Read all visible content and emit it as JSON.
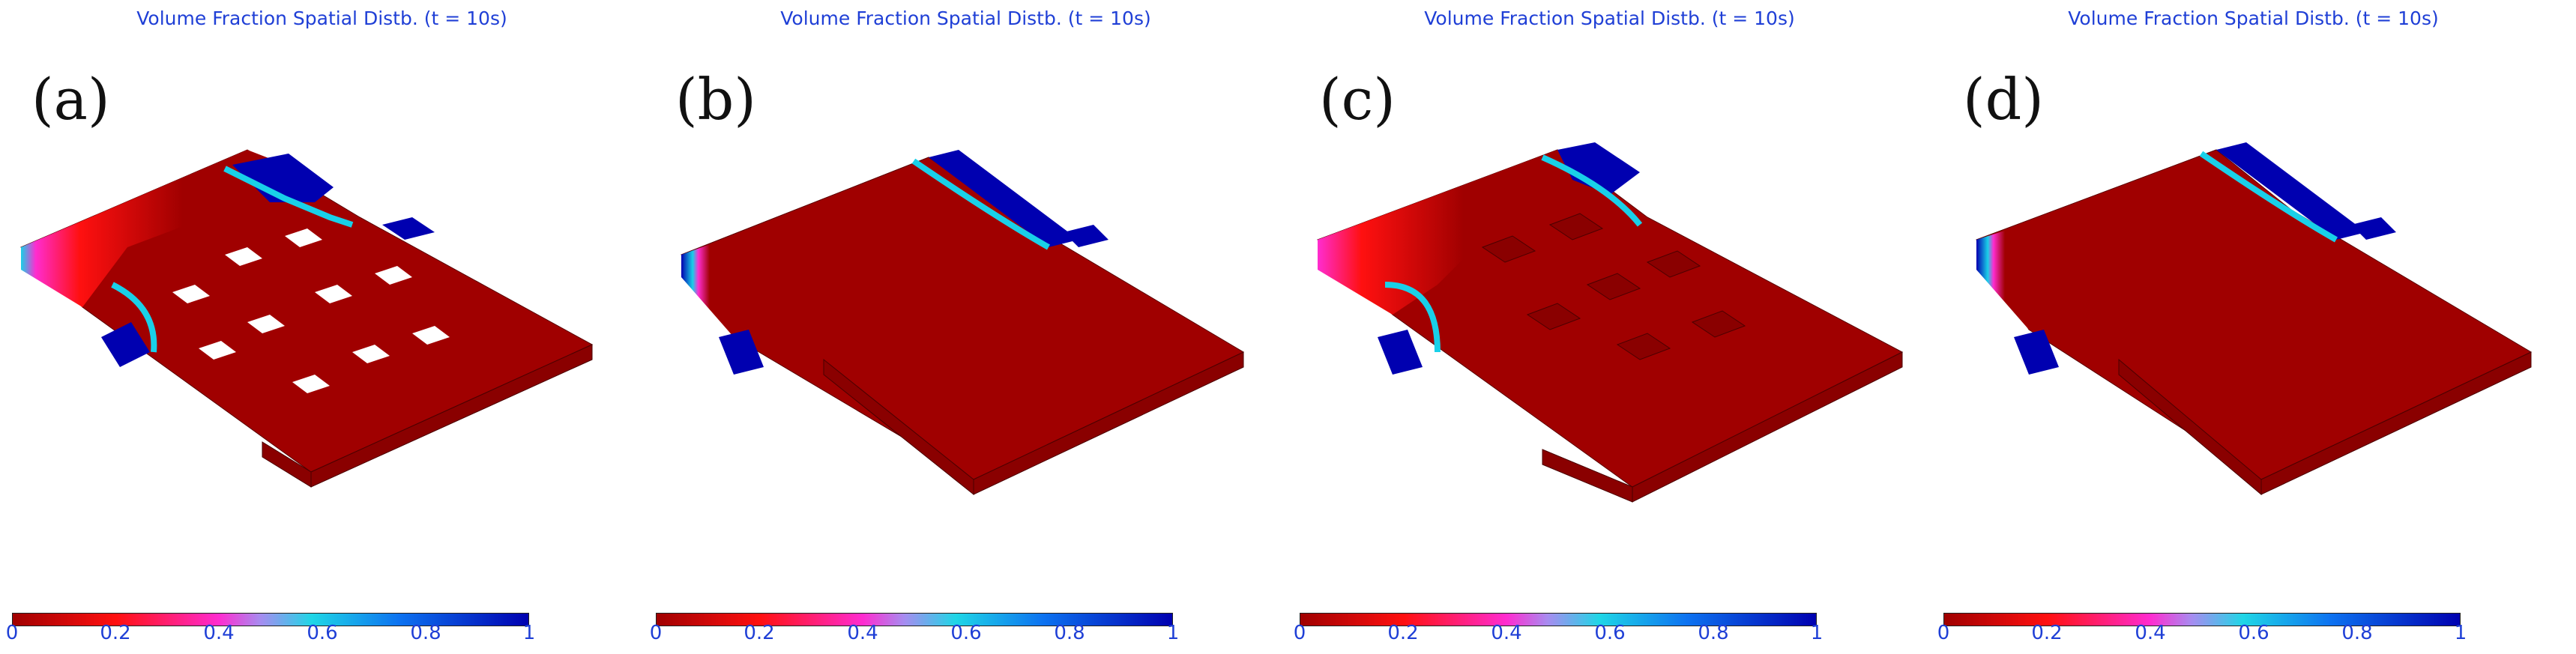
{
  "panels": [
    {
      "title": "Volume Fraction Spatial Distb. (t = 10s)",
      "label": "(a)"
    },
    {
      "title": "Volume Fraction Spatial Distb. (t = 10s)",
      "label": "(b)"
    },
    {
      "title": "Volume Fraction Spatial Distb. (t = 10s)",
      "label": "(c)"
    },
    {
      "title": "Volume Fraction Spatial Distb. (t = 10s)",
      "label": "(d)"
    }
  ],
  "colorbar": {
    "ticks": [
      "0",
      "0.2",
      "0.4",
      "0.6",
      "0.8",
      "1"
    ],
    "colors": [
      "#a00000",
      "#ff1010",
      "#ff2cd0",
      "#a78cf0",
      "#1fd6e6",
      "#0d72f0",
      "#0000b0"
    ]
  }
}
